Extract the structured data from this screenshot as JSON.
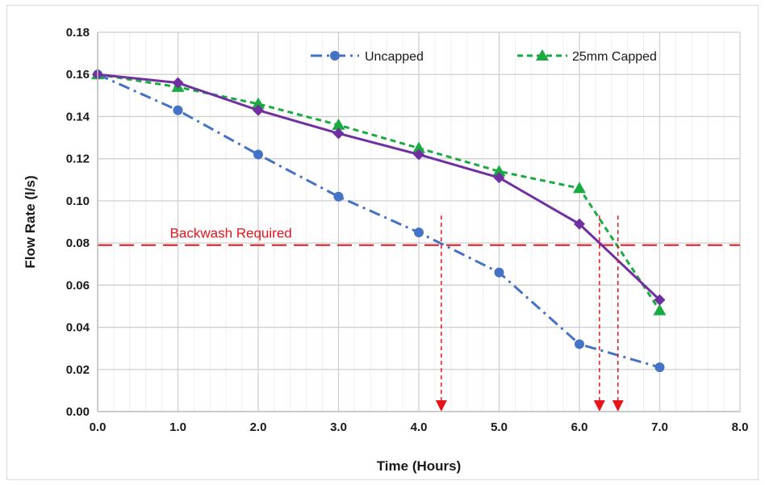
{
  "chart_data": {
    "type": "line",
    "xlabel": "Time (Hours)",
    "ylabel": "Flow Rate (l/s)",
    "xlim": [
      0,
      8
    ],
    "ylim": [
      0,
      0.18
    ],
    "x_ticks": [
      "0.0",
      "1.0",
      "2.0",
      "3.0",
      "4.0",
      "5.0",
      "6.0",
      "7.0",
      "8.0"
    ],
    "y_ticks": [
      "0.00",
      "0.02",
      "0.04",
      "0.06",
      "0.08",
      "0.10",
      "0.12",
      "0.14",
      "0.16",
      "0.18"
    ],
    "grid": true,
    "legend_position": "top-right",
    "series": [
      {
        "name": "Uncapped",
        "color": "#4472c4",
        "marker": "circle",
        "line_style": "dash-dot",
        "x": [
          0,
          1,
          2,
          3,
          4,
          5,
          6,
          7
        ],
        "values": [
          0.16,
          0.143,
          0.122,
          0.102,
          0.085,
          0.066,
          0.032,
          0.021
        ]
      },
      {
        "name": "25mm Capped",
        "color": "#1aab40",
        "marker": "triangle",
        "line_style": "dashed",
        "x": [
          0,
          1,
          2,
          3,
          4,
          5,
          6,
          7
        ],
        "values": [
          0.16,
          0.154,
          0.146,
          0.136,
          0.125,
          0.114,
          0.106,
          0.048
        ]
      },
      {
        "color": "#7030a0",
        "marker": "diamond",
        "line_style": "solid",
        "x": [
          0,
          1,
          2,
          3,
          4,
          5,
          6,
          7
        ],
        "values": [
          0.16,
          0.156,
          0.143,
          0.132,
          0.122,
          0.111,
          0.089,
          0.053
        ]
      }
    ],
    "threshold": {
      "label": "Backwash Required",
      "value": 0.079,
      "color": "#e8141b"
    },
    "crossing_markers": {
      "color": "#e8141b",
      "x": [
        4.28,
        6.25,
        6.48
      ],
      "from_y": 0.093
    }
  }
}
